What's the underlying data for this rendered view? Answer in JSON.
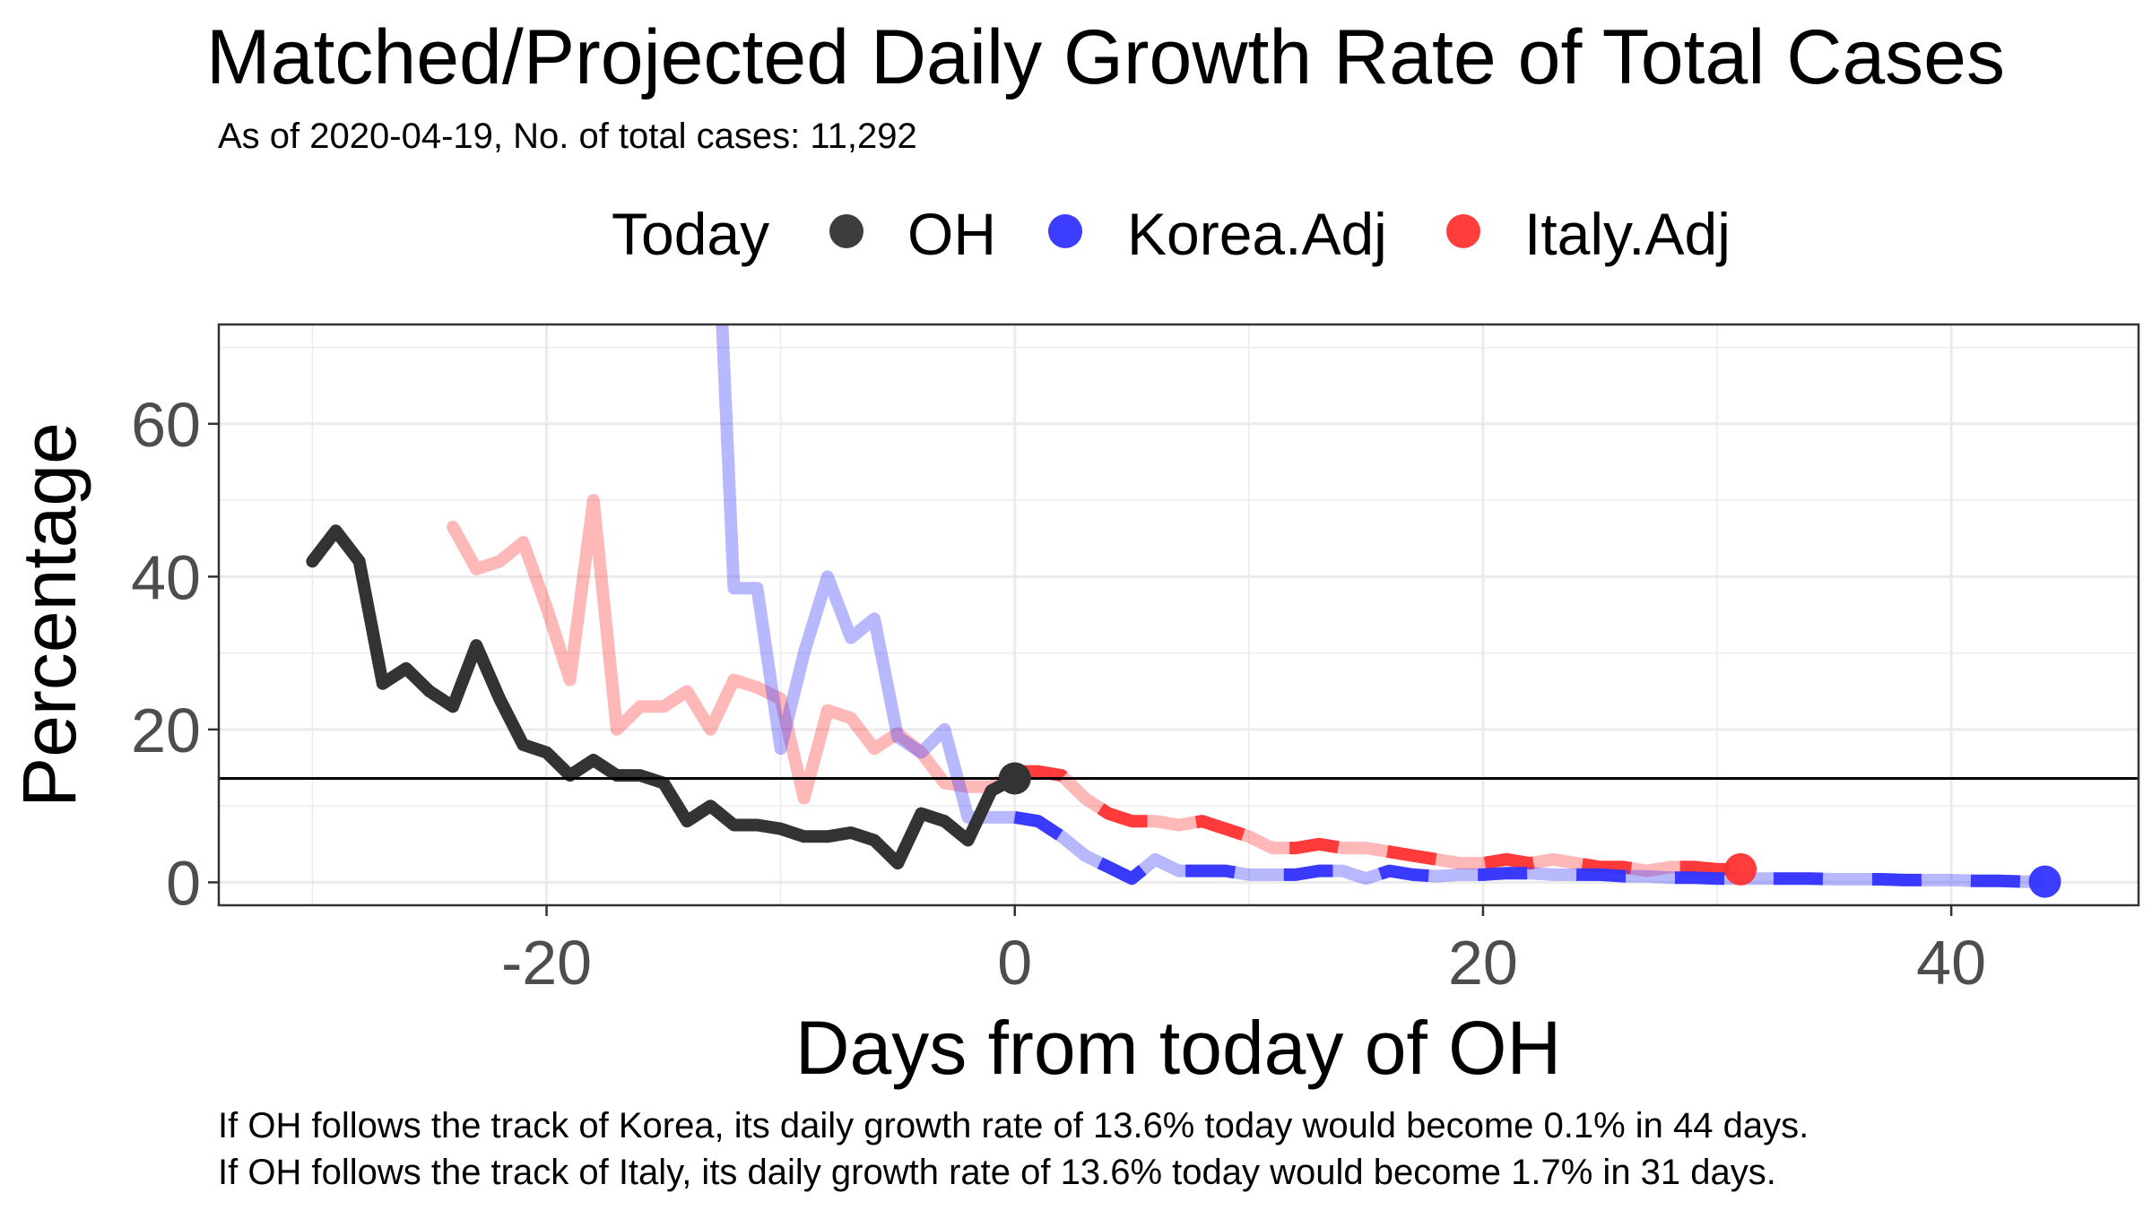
{
  "chart_data": {
    "type": "line",
    "title": "Matched/Projected Daily Growth Rate of Total Cases",
    "subtitle": "As of 2020-04-19, No. of total cases: 11,292",
    "xlabel": "Days from today of OH",
    "ylabel": "Percentage",
    "xlim": [
      -34,
      48
    ],
    "ylim": [
      -3,
      73
    ],
    "xticks": [
      -20,
      0,
      20,
      40
    ],
    "yticks": [
      0,
      20,
      40,
      60
    ],
    "grid": true,
    "legend": {
      "title": "Today",
      "position": "top",
      "entries": [
        {
          "name": "OH",
          "color": "#333333"
        },
        {
          "name": "Korea.Adj",
          "color": "#3333ff"
        },
        {
          "name": "Italy.Adj",
          "color": "#ff3333"
        }
      ]
    },
    "hline": 13.6,
    "series": [
      {
        "name": "OH",
        "color": "#333333",
        "x": [
          -30,
          -29,
          -28,
          -27,
          -26,
          -25,
          -24,
          -23,
          -22,
          -21,
          -20,
          -19,
          -18,
          -17,
          -16,
          -15,
          -14,
          -13,
          -12,
          -11,
          -10,
          -9,
          -8,
          -7,
          -6,
          -5,
          -4,
          -3,
          -2,
          -1,
          0
        ],
        "y": [
          42,
          46,
          42,
          26,
          28,
          25,
          23,
          31,
          24,
          18,
          17,
          14,
          16,
          14,
          14,
          13,
          8,
          10,
          7.5,
          7.5,
          7,
          6,
          6,
          6.5,
          5.5,
          2.5,
          9,
          8,
          5.5,
          12,
          13.6
        ]
      },
      {
        "name": "Korea.Adj",
        "color": "#3333ff",
        "past": {
          "x": [
            -12.5,
            -12,
            -11,
            -10,
            -9,
            -8,
            -7,
            -6,
            -5,
            -4,
            -3,
            -2,
            -1,
            0
          ],
          "y": [
            73,
            38.5,
            38.5,
            17.5,
            30,
            40,
            32,
            34.5,
            19,
            17,
            20,
            8.5,
            8.5,
            8.5
          ]
        },
        "future": {
          "x": [
            0,
            1,
            2,
            3,
            4,
            5,
            6,
            7,
            8,
            9,
            10,
            11,
            12,
            13,
            14,
            15,
            16,
            17,
            18,
            19,
            20,
            21,
            22,
            23,
            24,
            25,
            26,
            27,
            28,
            29,
            30,
            31,
            32,
            33,
            34,
            35,
            36,
            37,
            38,
            39,
            40,
            41,
            42,
            43,
            44
          ],
          "y": [
            8.5,
            8,
            6,
            3.5,
            2,
            0.5,
            3,
            1.5,
            1.5,
            1.5,
            1,
            1,
            1,
            1.5,
            1.5,
            0.5,
            1.5,
            1,
            0.8,
            1,
            1,
            1.2,
            1.2,
            1,
            1,
            1,
            0.8,
            0.8,
            0.6,
            0.6,
            0.5,
            0.5,
            0.5,
            0.5,
            0.5,
            0.4,
            0.4,
            0.4,
            0.3,
            0.3,
            0.3,
            0.2,
            0.2,
            0.1,
            0.1
          ]
        },
        "end": {
          "x": 44,
          "y": 0.1
        }
      },
      {
        "name": "Italy.Adj",
        "color": "#ff3333",
        "past": {
          "x": [
            -24,
            -23,
            -22,
            -21,
            -20,
            -19,
            -18,
            -17,
            -16,
            -15,
            -14,
            -13,
            -12,
            -11,
            -10,
            -9,
            -8,
            -7,
            -6,
            -5,
            -4,
            -3,
            -2,
            -1,
            0
          ],
          "y": [
            46.5,
            41,
            42,
            44.5,
            36,
            26.5,
            50,
            20,
            23,
            23,
            25,
            20,
            26.5,
            25.5,
            24,
            11,
            22.5,
            21.5,
            17.5,
            19.5,
            17,
            13,
            12.5,
            12.5,
            14.5
          ]
        },
        "future": {
          "x": [
            0,
            1,
            2,
            3,
            4,
            5,
            6,
            7,
            8,
            9,
            10,
            11,
            12,
            13,
            14,
            15,
            16,
            17,
            18,
            19,
            20,
            21,
            22,
            23,
            24,
            25,
            26,
            27,
            28,
            29,
            30,
            31
          ],
          "y": [
            14.5,
            14.5,
            14,
            11,
            9,
            8,
            8,
            7.5,
            8,
            7,
            6,
            4.5,
            4.5,
            5,
            4.5,
            4.5,
            4,
            3.5,
            3,
            2.5,
            2.5,
            3,
            2.5,
            3,
            2.5,
            2,
            2,
            1.5,
            2,
            2,
            1.7,
            1.7
          ]
        },
        "end": {
          "x": 31,
          "y": 1.7
        }
      }
    ],
    "today_point": {
      "x": 0,
      "y": 13.6
    },
    "captions": [
      "If OH follows the track of Korea, its daily growth rate of 13.6% today would become 0.1% in 44 days.",
      "If OH follows the track of Italy, its daily growth rate of 13.6% today would become 1.7% in 31 days."
    ]
  }
}
